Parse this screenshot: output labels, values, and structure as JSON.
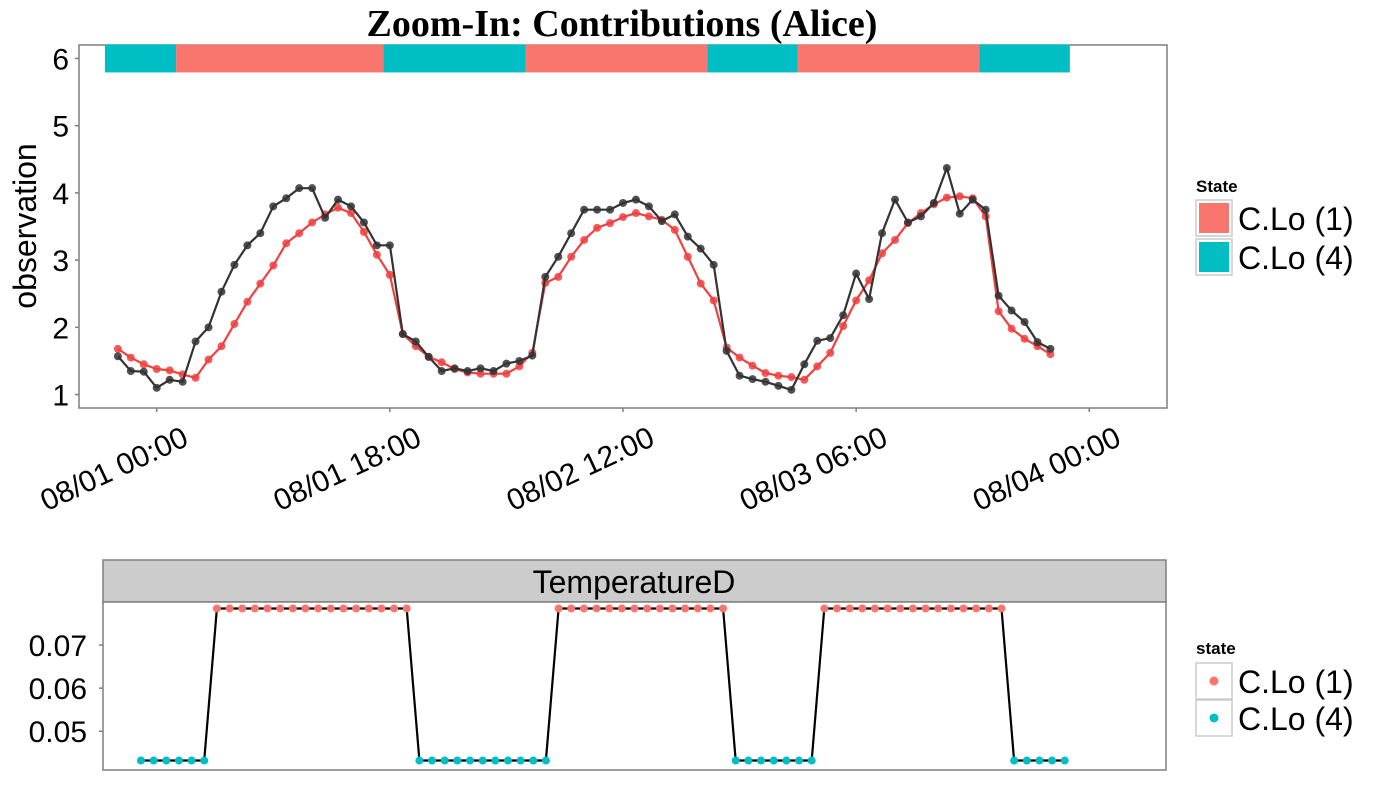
{
  "colors": {
    "state1": "#F8766D",
    "state4": "#00BFC4",
    "observed": "#333333",
    "fitted": "#F04040"
  },
  "chart_data": [
    {
      "type": "line",
      "title": "Zoom-In: Contributions (Alice)",
      "xlabel": "",
      "ylabel": "observation",
      "xlim_hours": [
        -6,
        78
      ],
      "ylim": [
        0.8,
        6.2
      ],
      "x_ticks": [
        {
          "hour": 0,
          "label": "08/01 00:00"
        },
        {
          "hour": 18,
          "label": "08/01 18:00"
        },
        {
          "hour": 36,
          "label": "08/02 12:00"
        },
        {
          "hour": 54,
          "label": "08/03 06:00"
        },
        {
          "hour": 72,
          "label": "08/04 00:00"
        }
      ],
      "y_ticks": [
        1,
        2,
        3,
        4,
        5,
        6
      ],
      "state_bar": {
        "y": 6,
        "segments": [
          {
            "state": "C.Lo (4)",
            "start": -4,
            "end": 1.5
          },
          {
            "state": "C.Lo (1)",
            "start": 1.5,
            "end": 17.5
          },
          {
            "state": "C.Lo (4)",
            "start": 17.5,
            "end": 28.5
          },
          {
            "state": "C.Lo (1)",
            "start": 28.5,
            "end": 42.5
          },
          {
            "state": "C.Lo (4)",
            "start": 42.5,
            "end": 49.5
          },
          {
            "state": "C.Lo (1)",
            "start": 49.5,
            "end": 63.5
          },
          {
            "state": "C.Lo (4)",
            "start": 63.5,
            "end": 70.5
          }
        ]
      },
      "x_start_hour": -3,
      "x_step_hours": 1,
      "series": [
        {
          "role": "observed",
          "values": [
            1.57,
            1.35,
            1.34,
            1.1,
            1.22,
            1.19,
            1.79,
            2.0,
            2.53,
            2.93,
            3.22,
            3.4,
            3.8,
            3.92,
            4.07,
            4.07,
            3.63,
            3.9,
            3.8,
            3.56,
            3.22,
            3.22,
            1.9,
            1.79,
            1.56,
            1.35,
            1.39,
            1.35,
            1.39,
            1.35,
            1.46,
            1.5,
            1.58,
            2.75,
            3.05,
            3.4,
            3.75,
            3.75,
            3.75,
            3.85,
            3.9,
            3.8,
            3.58,
            3.68,
            3.35,
            3.17,
            2.93,
            1.65,
            1.28,
            1.23,
            1.19,
            1.13,
            1.07,
            1.45,
            1.8,
            1.84,
            2.18,
            2.8,
            2.42,
            3.4,
            3.9,
            3.56,
            3.65,
            3.85,
            4.37,
            3.69,
            3.9,
            3.75,
            2.47,
            2.25,
            2.08,
            1.78,
            1.68
          ]
        },
        {
          "role": "fitted",
          "values": [
            1.68,
            1.55,
            1.45,
            1.38,
            1.36,
            1.3,
            1.25,
            1.52,
            1.72,
            2.05,
            2.38,
            2.65,
            2.92,
            3.25,
            3.4,
            3.56,
            3.68,
            3.78,
            3.7,
            3.42,
            3.08,
            2.78,
            1.9,
            1.72,
            1.56,
            1.48,
            1.38,
            1.33,
            1.31,
            1.31,
            1.31,
            1.42,
            1.62,
            2.66,
            2.75,
            3.05,
            3.3,
            3.48,
            3.55,
            3.64,
            3.7,
            3.65,
            3.6,
            3.45,
            3.05,
            2.65,
            2.4,
            1.7,
            1.55,
            1.43,
            1.32,
            1.28,
            1.26,
            1.22,
            1.42,
            1.62,
            2.02,
            2.4,
            2.7,
            3.1,
            3.3,
            3.55,
            3.7,
            3.83,
            3.93,
            3.95,
            3.92,
            3.65,
            2.24,
            1.98,
            1.83,
            1.72,
            1.6
          ]
        }
      ]
    },
    {
      "type": "line",
      "title": "",
      "facet": "TemperatureD",
      "xlim_hours": [
        -6,
        78
      ],
      "ylim": [
        0.041,
        0.08
      ],
      "y_ticks": [
        0.05,
        0.06,
        0.07
      ],
      "x_start_hour": -3,
      "x_step_hours": 1,
      "low_value": 0.0432,
      "high_value": 0.0785,
      "segments": [
        {
          "state": "C.Lo (4)",
          "start": -3,
          "end": 2
        },
        {
          "state": "C.Lo (1)",
          "start": 3,
          "end": 18
        },
        {
          "state": "C.Lo (4)",
          "start": 19,
          "end": 29
        },
        {
          "state": "C.Lo (1)",
          "start": 30,
          "end": 43
        },
        {
          "state": "C.Lo (4)",
          "start": 44,
          "end": 50
        },
        {
          "state": "C.Lo (1)",
          "start": 51,
          "end": 65
        },
        {
          "state": "C.Lo (4)",
          "start": 66,
          "end": 70
        }
      ]
    }
  ],
  "legend_top": {
    "title": "State",
    "items": [
      "C.Lo (1)",
      "C.Lo (4)"
    ]
  },
  "legend_bottom": {
    "title": "state",
    "items": [
      "C.Lo (1)",
      "C.Lo (4)"
    ]
  }
}
